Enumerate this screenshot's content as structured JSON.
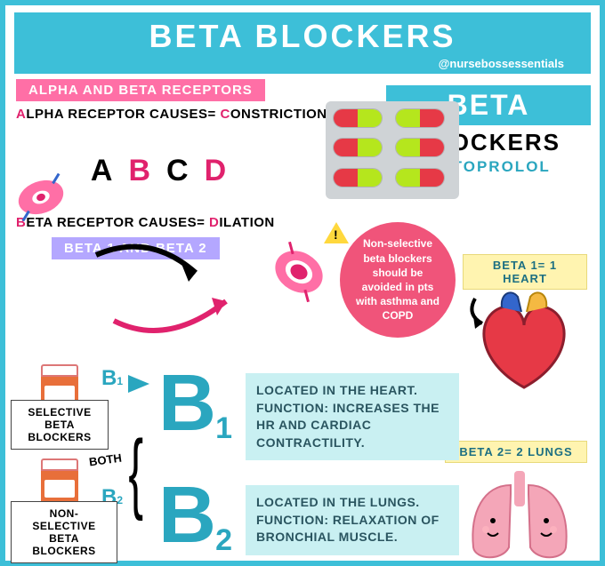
{
  "title": "BETA BLOCKERS",
  "handle": "@nursebossessentials",
  "section1": {
    "heading": "ALPHA AND BETA RECEPTORS",
    "alpha_line_pre": "A",
    "alpha_line_mid": "LPHA RECEPTOR CAUSES= ",
    "alpha_line_c": "C",
    "alpha_line_end": "ONSTRICTION",
    "letters": [
      "A",
      "B",
      "C",
      "D"
    ],
    "letter_colors": [
      "#000000",
      "#e0226d",
      "#000000",
      "#e0226d"
    ],
    "beta_line_b": "B",
    "beta_line_mid": "ETA RECEPTOR CAUSES= ",
    "beta_line_d": "D",
    "beta_line_end": "ILATION"
  },
  "section2": {
    "heading": "BETA 1 AND BETA 2",
    "selective_label": "SELECTIVE BETA BLOCKERS",
    "nonselective_label": "NON-SELECTIVE BETA BLOCKERS",
    "both_label": "BOTH",
    "b1_text": "LOCATED IN THE HEART. FUNCTION: INCREASES THE HR AND CARDIAC CONTRACTILITY.",
    "b2_text": "LOCATED IN THE LUNGS. FUNCTION: RELAXATION OF BRONCHIAL MUSCLE.",
    "b1_small": "B₁",
    "b2_small": "B₂"
  },
  "rightcol": {
    "mini": "BETA",
    "sub": "BLOCKERS",
    "drug": "METOPROLOL",
    "beta1_label": "BETA 1= 1 HEART",
    "beta2_label": "BETA 2= 2 LUNGS"
  },
  "warning": "Non-selective beta blockers should be avoided in pts with asthma and COPD",
  "capsules": [
    {
      "left": "#e63946",
      "right": "#b5e61d"
    },
    {
      "left": "#b5e61d",
      "right": "#e63946"
    },
    {
      "left": "#e63946",
      "right": "#b5e61d"
    },
    {
      "left": "#b5e61d",
      "right": "#e63946"
    },
    {
      "left": "#e63946",
      "right": "#b5e61d"
    },
    {
      "left": "#b5e61d",
      "right": "#e63946"
    }
  ],
  "colors": {
    "primary": "#3dbfd8",
    "pink": "#ff6fa6",
    "purple": "#b4a7ff",
    "red": "#e0226d",
    "tealbox": "#c9f0f2",
    "yellow": "#fff4b0",
    "warn": "#f0547a"
  }
}
